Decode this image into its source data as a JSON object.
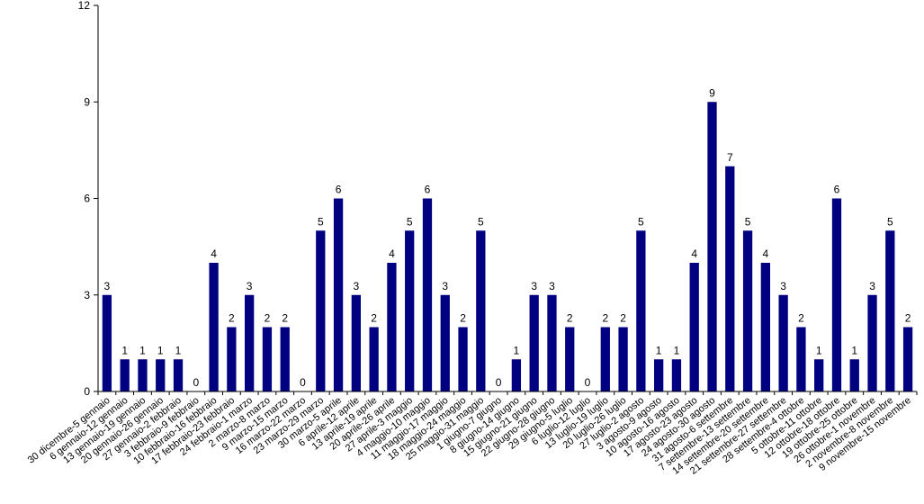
{
  "chart_data": {
    "type": "bar",
    "categories": [
      "30 dicembre-5 gennaio",
      "6 gennaio-12 gennaio",
      "13 gennaio-19 gennaio",
      "20 gennaio-26 gennaio",
      "27 gennaio-2 febbraio",
      "3 febbraio-9 febbraio",
      "10 febbraio-16 febbraio",
      "17 febbraio-23 febbraio",
      "24 febbraio-1 marzo",
      "2 marzo-8 marzo",
      "9 marzo-15 marzo",
      "16 marzo-22 marzo",
      "23 marzo-29 marzo",
      "30 marzo-5 aprile",
      "6 aprile-12 aprile",
      "13 aprile-19 aprile",
      "20 aprile-26 aprile",
      "27 aprile-3 maggio",
      "4 maggio-10 maggio",
      "11 maggio-17 maggio",
      "18 maggio-24 maggio",
      "25 maggio-31 maggio",
      "1 giugno-7 giugno",
      "8 giugno-14 giugno",
      "15 giugno-21 giugno",
      "22 giugno-28 giugno",
      "29 giugno-5 luglio",
      "6 luglio-12 luglio",
      "13 luglio-19 luglio",
      "20 luglio-26 luglio",
      "27 luglio-2 agosto",
      "3 agosto-9 agosto",
      "10 agosto-16 agosto",
      "17 agosto-23 agosto",
      "24 agosto-30 agosto",
      "31 agosto-6 settembre",
      "7 settembre-13 settembre",
      "14 settembre-20 settembre",
      "21 settembre-27 settembre",
      "28 settembre-4 ottobre",
      "5 ottobre-11 ottobre",
      "12 ottobre-18 ottobre",
      "19 ottobre-25 ottobre",
      "26 ottobre-1 novembre",
      "2 novembre-8 novembre",
      "9 novembre-15 novembre"
    ],
    "values": [
      3,
      1,
      1,
      1,
      1,
      0,
      4,
      2,
      3,
      2,
      2,
      0,
      5,
      6,
      3,
      2,
      4,
      5,
      6,
      3,
      2,
      5,
      0,
      1,
      3,
      3,
      2,
      0,
      2,
      2,
      5,
      1,
      1,
      4,
      9,
      7,
      5,
      4,
      3,
      2,
      1,
      6,
      1,
      3,
      5,
      2
    ],
    "ylim": [
      0,
      12
    ],
    "yticks": [
      0,
      3,
      6,
      9,
      12
    ],
    "bar_color": "#000080",
    "grid": false,
    "legend": "none"
  }
}
